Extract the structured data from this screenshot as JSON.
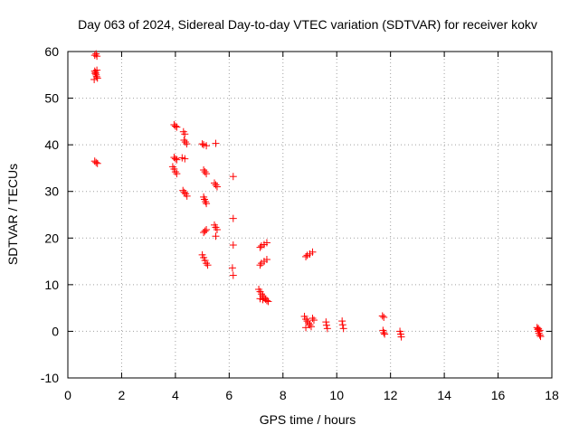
{
  "chart_data": {
    "type": "scatter",
    "title": "Day 063 of 2024, Sidereal Day-to-day VTEC variation (SDTVAR) for receiver kokv",
    "xlabel": "GPS time / hours",
    "ylabel": "SDTVAR / TECUs",
    "xlim": [
      0,
      18
    ],
    "ylim": [
      -10,
      60
    ],
    "xticks": [
      0,
      2,
      4,
      6,
      8,
      10,
      12,
      14,
      16,
      18
    ],
    "yticks": [
      -10,
      0,
      10,
      20,
      30,
      40,
      50,
      60
    ],
    "grid": true,
    "marker": "+",
    "marker_color": "#ff0000",
    "series": [
      {
        "name": "SDTVAR",
        "points": [
          [
            1.0,
            59.2
          ],
          [
            1.05,
            59.5
          ],
          [
            1.08,
            59.0
          ],
          [
            1.0,
            55.8
          ],
          [
            1.02,
            55.3
          ],
          [
            1.05,
            55.0
          ],
          [
            1.07,
            54.6
          ],
          [
            1.1,
            54.3
          ],
          [
            0.98,
            54.0
          ],
          [
            1.03,
            55.5
          ],
          [
            1.08,
            56.0
          ],
          [
            1.0,
            36.5
          ],
          [
            1.05,
            36.2
          ],
          [
            1.1,
            36.0
          ],
          [
            3.95,
            44.3
          ],
          [
            4.0,
            44.0
          ],
          [
            4.05,
            43.8
          ],
          [
            3.95,
            37.3
          ],
          [
            4.0,
            37.0
          ],
          [
            4.05,
            36.8
          ],
          [
            3.9,
            35.3
          ],
          [
            3.95,
            34.8
          ],
          [
            4.0,
            34.2
          ],
          [
            4.05,
            33.8
          ],
          [
            4.3,
            42.8
          ],
          [
            4.35,
            42.3
          ],
          [
            4.32,
            41.0
          ],
          [
            4.37,
            40.6
          ],
          [
            4.42,
            40.2
          ],
          [
            4.25,
            37.2
          ],
          [
            4.35,
            37.0
          ],
          [
            4.28,
            30.2
          ],
          [
            4.33,
            29.8
          ],
          [
            4.38,
            29.5
          ],
          [
            4.43,
            29.0
          ],
          [
            5.0,
            40.2
          ],
          [
            5.05,
            40.0
          ],
          [
            5.15,
            39.8
          ],
          [
            5.5,
            40.3
          ],
          [
            5.05,
            34.6
          ],
          [
            5.1,
            34.2
          ],
          [
            5.15,
            33.8
          ],
          [
            5.05,
            28.8
          ],
          [
            5.08,
            28.3
          ],
          [
            5.12,
            27.8
          ],
          [
            5.15,
            27.4
          ],
          [
            5.45,
            31.8
          ],
          [
            5.5,
            31.4
          ],
          [
            5.55,
            31.0
          ],
          [
            5.05,
            21.2
          ],
          [
            5.1,
            21.5
          ],
          [
            5.15,
            21.8
          ],
          [
            5.45,
            22.8
          ],
          [
            5.5,
            22.3
          ],
          [
            5.55,
            21.8
          ],
          [
            5.5,
            20.4
          ],
          [
            5.0,
            16.4
          ],
          [
            5.05,
            15.8
          ],
          [
            5.1,
            15.2
          ],
          [
            5.15,
            14.6
          ],
          [
            5.2,
            14.2
          ],
          [
            6.15,
            33.2
          ],
          [
            6.15,
            24.2
          ],
          [
            6.15,
            18.5
          ],
          [
            6.12,
            13.6
          ],
          [
            6.15,
            12.0
          ],
          [
            7.15,
            18.0
          ],
          [
            7.2,
            18.3
          ],
          [
            7.3,
            18.6
          ],
          [
            7.4,
            19.0
          ],
          [
            7.15,
            14.2
          ],
          [
            7.2,
            14.6
          ],
          [
            7.3,
            15.0
          ],
          [
            7.4,
            15.4
          ],
          [
            7.1,
            9.0
          ],
          [
            7.15,
            8.5
          ],
          [
            7.2,
            8.0
          ],
          [
            7.25,
            7.6
          ],
          [
            7.3,
            7.2
          ],
          [
            7.35,
            6.9
          ],
          [
            7.4,
            6.6
          ],
          [
            7.45,
            6.4
          ],
          [
            7.15,
            7.0
          ],
          [
            7.25,
            6.8
          ],
          [
            8.85,
            16.0
          ],
          [
            8.9,
            16.3
          ],
          [
            9.0,
            16.6
          ],
          [
            9.1,
            17.0
          ],
          [
            8.8,
            3.2
          ],
          [
            8.85,
            2.6
          ],
          [
            8.9,
            2.2
          ],
          [
            8.95,
            1.8
          ],
          [
            9.0,
            1.4
          ],
          [
            9.05,
            1.0
          ],
          [
            8.85,
            0.8
          ],
          [
            9.1,
            2.8
          ],
          [
            9.15,
            2.4
          ],
          [
            9.6,
            2.0
          ],
          [
            9.62,
            1.3
          ],
          [
            9.65,
            0.6
          ],
          [
            10.2,
            2.2
          ],
          [
            10.22,
            1.4
          ],
          [
            10.25,
            0.6
          ],
          [
            11.7,
            3.3
          ],
          [
            11.75,
            3.0
          ],
          [
            11.72,
            0.2
          ],
          [
            11.75,
            -0.3
          ],
          [
            11.78,
            -0.6
          ],
          [
            12.35,
            0.0
          ],
          [
            12.38,
            -0.6
          ],
          [
            12.4,
            -1.2
          ],
          [
            17.45,
            0.8
          ],
          [
            17.48,
            0.4
          ],
          [
            17.5,
            0.0
          ],
          [
            17.52,
            -0.4
          ],
          [
            17.55,
            -0.8
          ],
          [
            17.58,
            -1.1
          ],
          [
            17.5,
            0.6
          ],
          [
            17.55,
            0.2
          ]
        ]
      }
    ]
  }
}
